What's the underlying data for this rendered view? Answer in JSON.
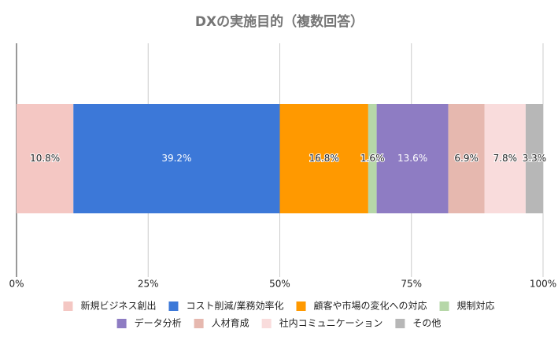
{
  "chart_data": {
    "type": "stacked_bar_horizontal",
    "title": "DXの実施目的（複数回答）",
    "series": [
      {
        "name": "新規ビジネス創出",
        "color": "#f4c7c3",
        "values": [
          10.8
        ],
        "value_labels": [
          "10.8%"
        ]
      },
      {
        "name": "コスト削減/業務効率化",
        "color": "#3c78d8",
        "values": [
          39.2
        ],
        "value_labels": [
          "39.2%"
        ]
      },
      {
        "name": "顧客や市場の変化への対応",
        "color": "#ff9900",
        "values": [
          16.8
        ],
        "value_labels": [
          "16.8%"
        ]
      },
      {
        "name": "規制対応",
        "color": "#b6d7a8",
        "values": [
          1.6
        ],
        "value_labels": [
          "1.6%"
        ]
      },
      {
        "name": "データ分析",
        "color": "#8e7cc3",
        "values": [
          13.6
        ],
        "value_labels": [
          "13.6%"
        ]
      },
      {
        "name": "人材育成",
        "color": "#e6b8af",
        "values": [
          6.9
        ],
        "value_labels": [
          "6.9%"
        ]
      },
      {
        "name": "社内コミュニケーション",
        "color": "#f9dcdc",
        "values": [
          7.8
        ],
        "value_labels": [
          "7.8%"
        ]
      },
      {
        "name": "その他",
        "color": "#b7b7b7",
        "values": [
          3.3
        ],
        "value_labels": [
          "3.3%"
        ]
      }
    ],
    "xlim": [
      0,
      100
    ],
    "xticks": [
      {
        "value": 0,
        "label": "0%"
      },
      {
        "value": 25,
        "label": "25%"
      },
      {
        "value": 50,
        "label": "50%"
      },
      {
        "value": 75,
        "label": "75%"
      },
      {
        "value": 100,
        "label": "100%"
      }
    ],
    "grid": true,
    "legend": "bottom"
  }
}
